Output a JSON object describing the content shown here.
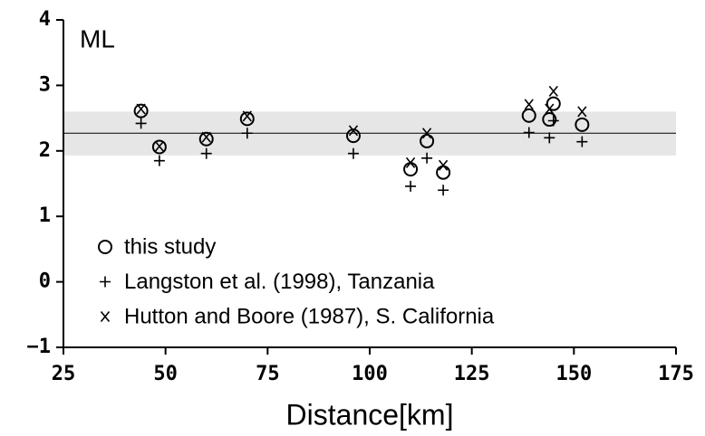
{
  "chart_data": {
    "type": "scatter",
    "ylabel": "ML",
    "xlabel": "Distance[km]",
    "x": [
      44,
      48.5,
      60,
      70,
      96,
      110,
      114,
      118,
      139,
      144,
      145,
      152
    ],
    "series": [
      {
        "name": "this study",
        "marker": "circle",
        "color": "#000000",
        "values": [
          2.61,
          2.06,
          2.18,
          2.49,
          2.23,
          1.72,
          2.15,
          1.67,
          2.54,
          2.48,
          2.72,
          2.4
        ]
      },
      {
        "name": "Langston et al. (1998), Tanzania",
        "marker": "plus",
        "color": "#000000",
        "values": [
          2.42,
          1.85,
          1.96,
          2.27,
          1.96,
          1.46,
          1.89,
          1.4,
          2.28,
          2.2,
          2.46,
          2.14
        ]
      },
      {
        "name": "Hutton and Boore (1987), S. California",
        "marker": "x",
        "color": "#000000",
        "values": [
          2.64,
          2.07,
          2.21,
          2.53,
          2.31,
          1.82,
          2.27,
          1.78,
          2.71,
          2.64,
          2.91,
          2.6
        ]
      }
    ],
    "band": [
      1.93,
      2.6
    ],
    "band_color": "#e6e6e6",
    "reference_line": 2.27,
    "xlim": [
      25,
      175
    ],
    "xticks": [
      25,
      50,
      75,
      100,
      125,
      150,
      175
    ],
    "ylim": [
      -1,
      4
    ],
    "yticks": [
      {
        "value": -1,
        "label": "−1"
      },
      0,
      1,
      2,
      3,
      4
    ],
    "legend": "lower left"
  }
}
